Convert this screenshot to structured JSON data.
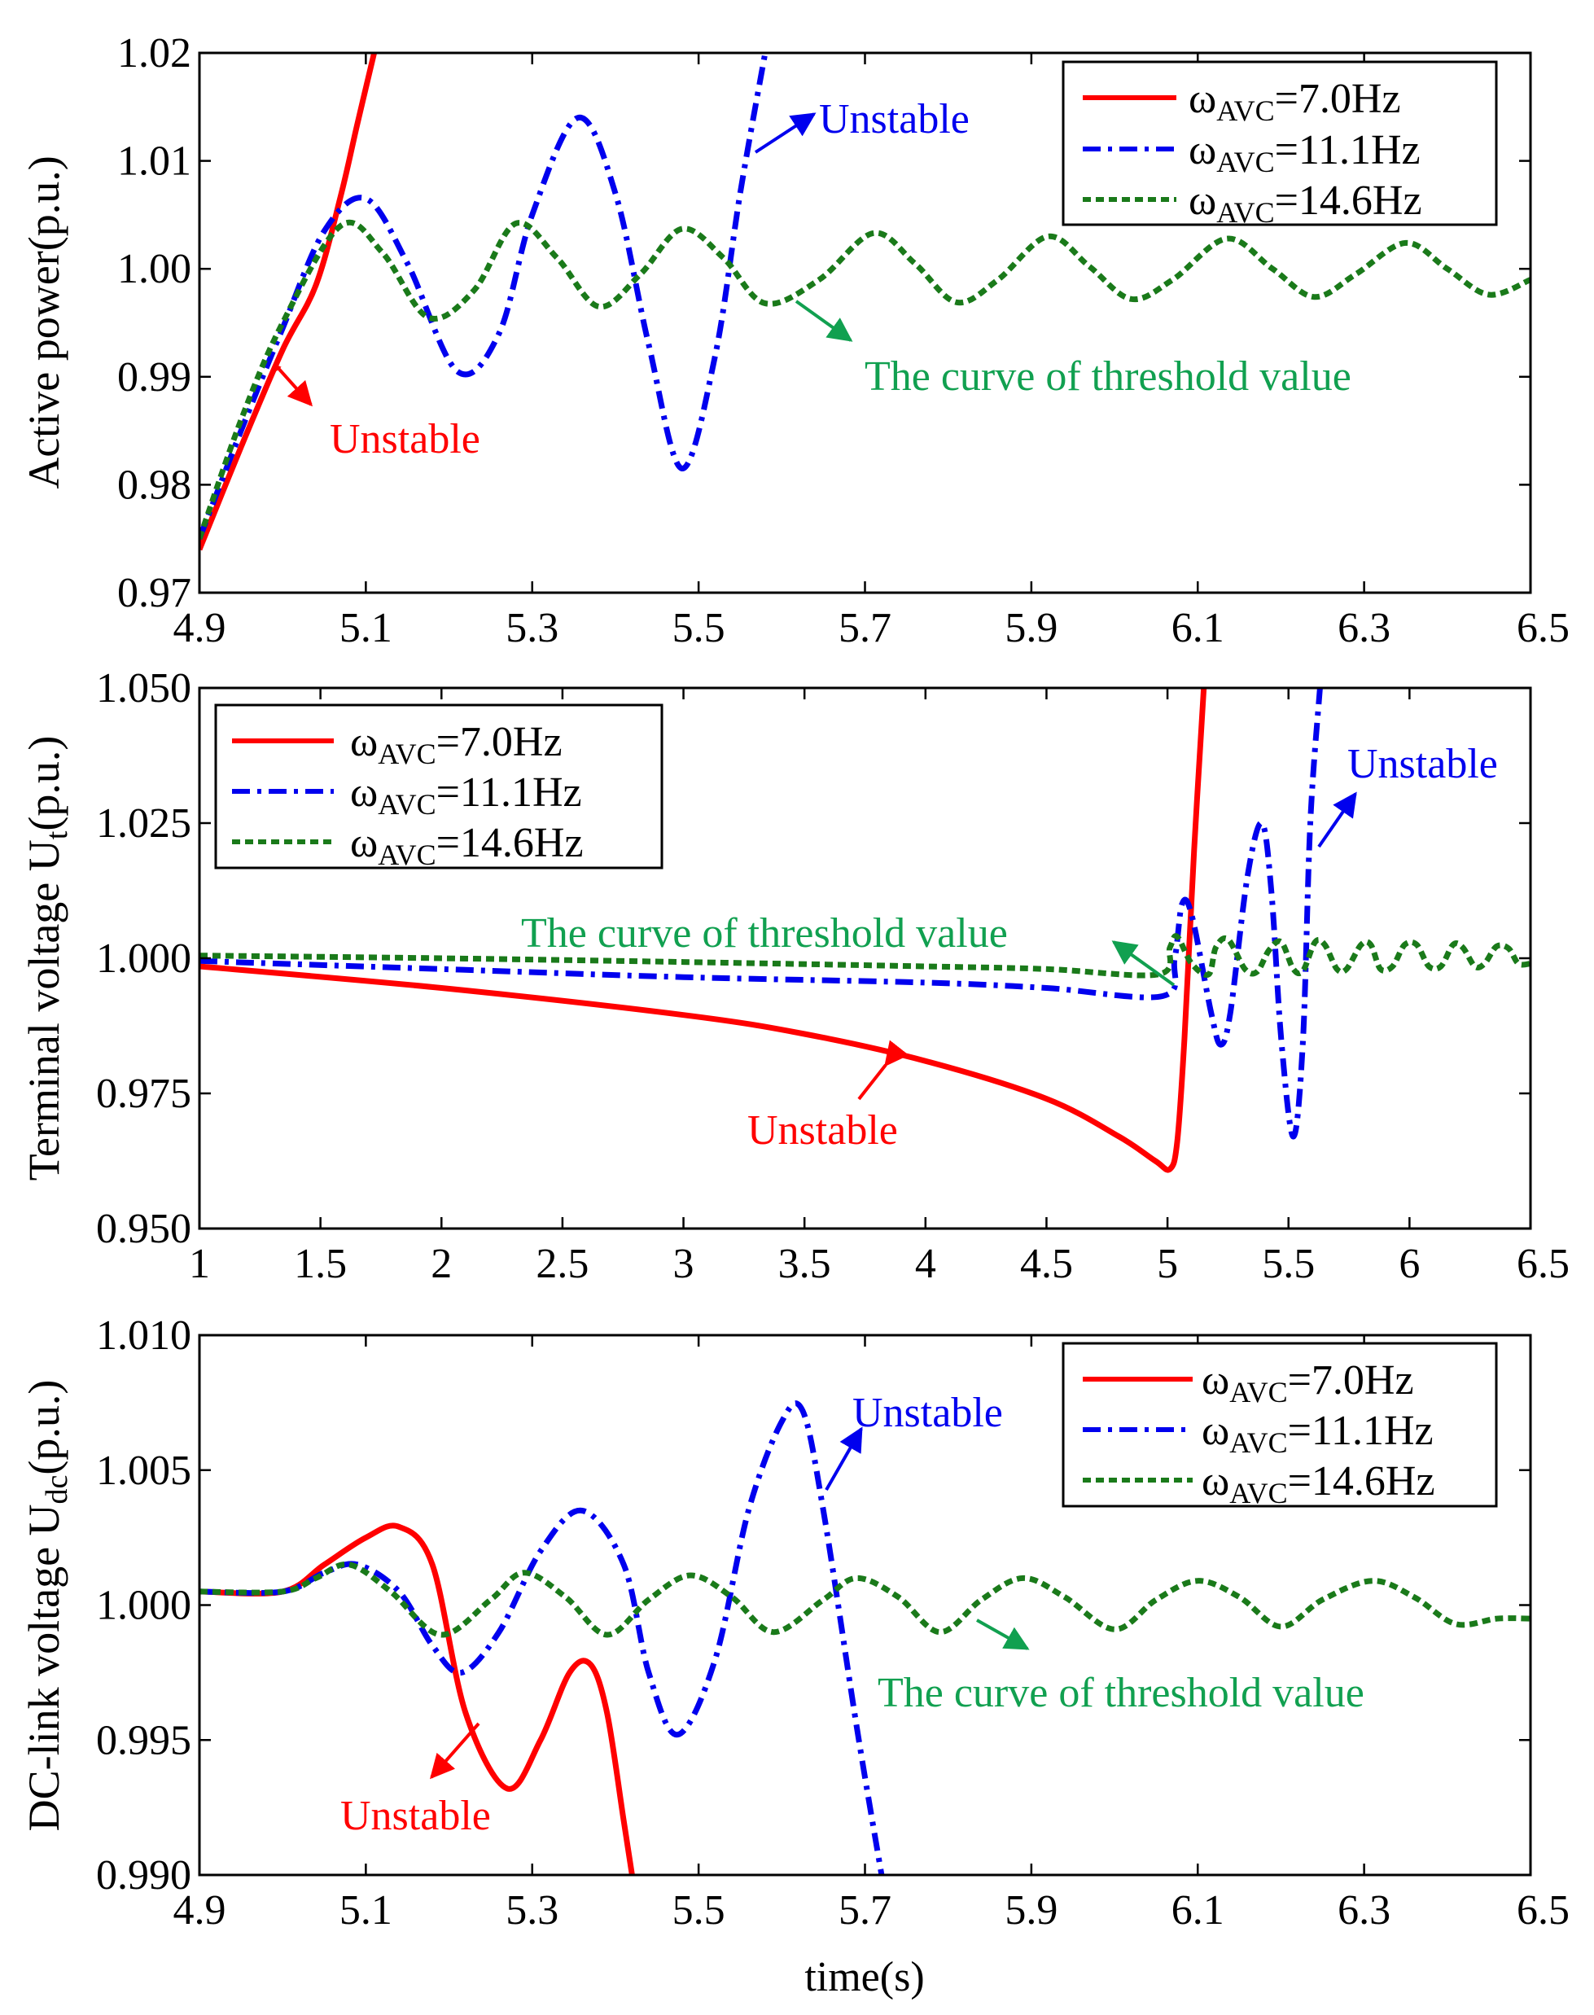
{
  "colors": {
    "red": "#ff0000",
    "blue": "#0000ee",
    "green": "#1a7a1a",
    "green_text": "#11a050",
    "axis": "#000000"
  },
  "figure": {
    "xlabel": "time(s)"
  },
  "chart_data": [
    {
      "id": "p1",
      "type": "line",
      "ylabel": "Active power(p.u.)",
      "xlim": [
        4.9,
        6.5
      ],
      "ylim": [
        0.97,
        1.02
      ],
      "xticks": [
        "4.9",
        "5.1",
        "5.3",
        "5.5",
        "5.7",
        "5.9",
        "6.1",
        "6.3",
        "6.5"
      ],
      "yticks": [
        "0.97",
        "0.98",
        "0.99",
        "1.00",
        "1.01",
        "1.02"
      ],
      "legend": {
        "position": "top-right"
      },
      "series": [
        {
          "name": "ωAVC=7.0Hz",
          "legend": {
            "base": "ω",
            "sub": "AVC",
            "rest": "=7.0Hz"
          },
          "color": "red",
          "style": "solid",
          "x": [
            4.9,
            4.95,
            5.0,
            5.04,
            5.07,
            5.09,
            5.11
          ],
          "y": [
            0.974,
            0.9835,
            0.9925,
            0.9985,
            1.0068,
            1.0135,
            1.02
          ]
        },
        {
          "name": "ωAVC=11.1Hz",
          "legend": {
            "base": "ω",
            "sub": "AVC",
            "rest": "=11.1Hz"
          },
          "color": "blue",
          "style": "dashdot",
          "x": [
            4.9,
            4.95,
            5.0,
            5.05,
            5.1,
            5.15,
            5.21,
            5.26,
            5.3,
            5.355,
            5.4,
            5.44,
            5.48,
            5.52,
            5.55,
            5.58
          ],
          "y": [
            0.975,
            0.985,
            0.9945,
            1.0035,
            1.0065,
            1.0005,
            0.9905,
            0.994,
            1.005,
            1.014,
            1.007,
            0.993,
            0.9815,
            0.992,
            1.007,
            1.02
          ]
        },
        {
          "name": "ωAVC=14.6Hz",
          "legend": {
            "base": "ω",
            "sub": "AVC",
            "rest": "=14.6Hz"
          },
          "color": "green",
          "style": "dashed",
          "x": [
            4.9,
            4.95,
            5.0,
            5.07,
            5.12,
            5.175,
            5.23,
            5.28,
            5.33,
            5.38,
            5.43,
            5.48,
            5.53,
            5.58,
            5.645,
            5.71,
            5.76,
            5.81,
            5.86,
            5.92,
            5.97,
            6.02,
            6.07,
            6.135,
            6.19,
            6.24,
            6.29,
            6.35,
            6.4,
            6.45,
            6.5
          ],
          "y": [
            0.975,
            0.986,
            0.995,
            1.004,
            1.0015,
            0.9955,
            0.998,
            1.0042,
            1.001,
            0.9965,
            0.9995,
            1.0037,
            1.001,
            0.9968,
            0.999,
            1.0033,
            1.0005,
            0.9969,
            0.999,
            1.003,
            1.0002,
            0.9972,
            0.999,
            1.0028,
            1.0,
            0.9974,
            0.9995,
            1.0024,
            1.0,
            0.9976,
            0.999
          ]
        }
      ],
      "annotations": [
        {
          "text": "Unstable",
          "color": "red"
        },
        {
          "text": "Unstable",
          "color": "blue"
        },
        {
          "text": "The curve of threshold value",
          "color": "green"
        }
      ]
    },
    {
      "id": "p2",
      "type": "line",
      "ylabel": "Terminal voltage Ut(p.u.)",
      "ylabel_parts": {
        "base": "Terminal voltage U",
        "sub": "t",
        "rest": "(p.u.)"
      },
      "xlim": [
        1,
        6.5
      ],
      "ylim": [
        0.95,
        1.05
      ],
      "xticks": [
        "1",
        "1.5",
        "2",
        "2.5",
        "3",
        "3.5",
        "4",
        "4.5",
        "5",
        "5.5",
        "6",
        "6.5"
      ],
      "yticks": [
        "0.950",
        "0.975",
        "1.000",
        "1.025",
        "1.050"
      ],
      "legend": {
        "position": "top-left"
      },
      "series": [
        {
          "name": "ωAVC=7.0Hz",
          "legend": {
            "base": "ω",
            "sub": "AVC",
            "rest": "=7.0Hz"
          },
          "color": "red",
          "style": "solid",
          "x": [
            1.0,
            2.0,
            3.0,
            3.5,
            4.0,
            4.5,
            4.8,
            4.95,
            5.01,
            5.04,
            5.07,
            5.11,
            5.15
          ],
          "y": [
            0.9985,
            0.9945,
            0.9895,
            0.986,
            0.981,
            0.974,
            0.967,
            0.9625,
            0.961,
            0.966,
            0.985,
            1.02,
            1.05
          ]
        },
        {
          "name": "ωAVC=11.1Hz",
          "legend": {
            "base": "ω",
            "sub": "AVC",
            "rest": "=11.1Hz"
          },
          "color": "blue",
          "style": "dashdot",
          "x": [
            1.0,
            2.0,
            3.0,
            4.0,
            4.5,
            4.98,
            5.03,
            5.06,
            5.1,
            5.18,
            5.22,
            5.26,
            5.33,
            5.39,
            5.43,
            5.47,
            5.52,
            5.56,
            5.59,
            5.63
          ],
          "y": [
            0.9995,
            0.998,
            0.9965,
            0.9955,
            0.9945,
            0.993,
            1.0,
            1.01,
            1.008,
            0.99,
            0.984,
            0.99,
            1.015,
            1.025,
            1.012,
            0.985,
            0.967,
            0.985,
            1.025,
            1.05
          ]
        },
        {
          "name": "ωAVC=14.6Hz",
          "legend": {
            "base": "ω",
            "sub": "AVC",
            "rest": "=14.6Hz"
          },
          "color": "green",
          "style": "dashed",
          "x": [
            1.0,
            2.0,
            3.0,
            4.0,
            4.5,
            4.96,
            5.01,
            5.04,
            5.1,
            5.17,
            5.2,
            5.25,
            5.32,
            5.37,
            5.42,
            5.47,
            5.52,
            5.56,
            5.61,
            5.65,
            5.7,
            5.74,
            5.8,
            5.84,
            5.88,
            5.93,
            5.98,
            6.03,
            6.08,
            6.13,
            6.18,
            6.22,
            6.27,
            6.31,
            6.36,
            6.41,
            6.45,
            6.5
          ],
          "y": [
            1.0005,
            1.0,
            0.9993,
            0.9985,
            0.998,
            0.997,
            1.002,
            1.004,
            0.999,
            0.997,
            1.002,
            1.0035,
            0.998,
            0.9975,
            1.0015,
            1.003,
            0.998,
            0.9977,
            1.003,
            1.0025,
            0.998,
            0.998,
            1.0025,
            1.0025,
            0.998,
            0.9985,
            1.0025,
            1.0025,
            0.9985,
            0.9985,
            1.0025,
            1.002,
            0.9985,
            0.999,
            1.0022,
            1.0018,
            0.999,
            0.999
          ]
        }
      ],
      "annotations": [
        {
          "text": "Unstable",
          "color": "red"
        },
        {
          "text": "Unstable",
          "color": "blue"
        },
        {
          "text": "The curve of threshold value",
          "color": "green"
        }
      ]
    },
    {
      "id": "p3",
      "type": "line",
      "ylabel": "DC-link voltage Udc(p.u.)",
      "ylabel_parts": {
        "base": "DC-link voltage U",
        "sub": "dc",
        "rest": "(p.u.)"
      },
      "xlim": [
        4.9,
        6.5
      ],
      "ylim": [
        0.99,
        1.01
      ],
      "xticks": [
        "4.9",
        "5.1",
        "5.3",
        "5.5",
        "5.7",
        "5.9",
        "6.1",
        "6.3",
        "6.5"
      ],
      "yticks": [
        "0.990",
        "0.995",
        "1.000",
        "1.005",
        "1.010"
      ],
      "legend": {
        "position": "top-right"
      },
      "series": [
        {
          "name": "ωAVC=7.0Hz",
          "legend": {
            "base": "ω",
            "sub": "AVC",
            "rest": "=7.0Hz"
          },
          "color": "red",
          "style": "solid",
          "x": [
            4.9,
            5.0,
            5.05,
            5.1,
            5.14,
            5.18,
            5.22,
            5.27,
            5.31,
            5.345,
            5.37,
            5.39,
            5.41,
            5.42
          ],
          "y": [
            1.0005,
            1.0005,
            1.0015,
            1.0025,
            1.0029,
            1.0015,
            0.996,
            0.9932,
            0.995,
            0.9975,
            0.9978,
            0.996,
            0.992,
            0.99
          ]
        },
        {
          "name": "ωAVC=11.1Hz",
          "legend": {
            "base": "ω",
            "sub": "AVC",
            "rest": "=11.1Hz"
          },
          "color": "blue",
          "style": "dashdot",
          "x": [
            4.9,
            5.0,
            5.05,
            5.09,
            5.14,
            5.18,
            5.215,
            5.26,
            5.31,
            5.36,
            5.41,
            5.44,
            5.475,
            5.52,
            5.56,
            5.6,
            5.625,
            5.65,
            5.69,
            5.72
          ],
          "y": [
            1.0005,
            1.0005,
            1.0012,
            1.0015,
            1.0005,
            0.9985,
            0.9975,
            0.999,
            1.002,
            1.0035,
            1.0015,
            0.9975,
            0.9952,
            0.998,
            1.0035,
            1.0068,
            1.0072,
            1.0035,
            0.9955,
            0.99
          ]
        },
        {
          "name": "ωAVC=14.6Hz",
          "legend": {
            "base": "ω",
            "sub": "AVC",
            "rest": "=14.6Hz"
          },
          "color": "green",
          "style": "dashed",
          "x": [
            4.9,
            5.0,
            5.04,
            5.08,
            5.13,
            5.19,
            5.25,
            5.29,
            5.34,
            5.39,
            5.44,
            5.49,
            5.54,
            5.59,
            5.65,
            5.69,
            5.74,
            5.79,
            5.84,
            5.89,
            5.94,
            6.0,
            6.05,
            6.1,
            6.15,
            6.2,
            6.25,
            6.31,
            6.36,
            6.41,
            6.46,
            6.5
          ],
          "y": [
            1.0005,
            1.0005,
            1.001,
            1.0015,
            1.0005,
            0.9989,
            1.0002,
            1.0012,
            1.0003,
            0.9989,
            1.0002,
            1.0011,
            1.0003,
            0.999,
            1.0002,
            1.001,
            1.0003,
            0.999,
            1.0002,
            1.001,
            1.0003,
            0.9991,
            1.0002,
            1.0009,
            1.0003,
            0.9992,
            1.0002,
            1.0009,
            1.0003,
            0.9993,
            0.9995,
            0.9995
          ]
        }
      ],
      "annotations": [
        {
          "text": "Unstable",
          "color": "red"
        },
        {
          "text": "Unstable",
          "color": "blue"
        },
        {
          "text": "The curve of threshold value",
          "color": "green"
        }
      ]
    }
  ]
}
